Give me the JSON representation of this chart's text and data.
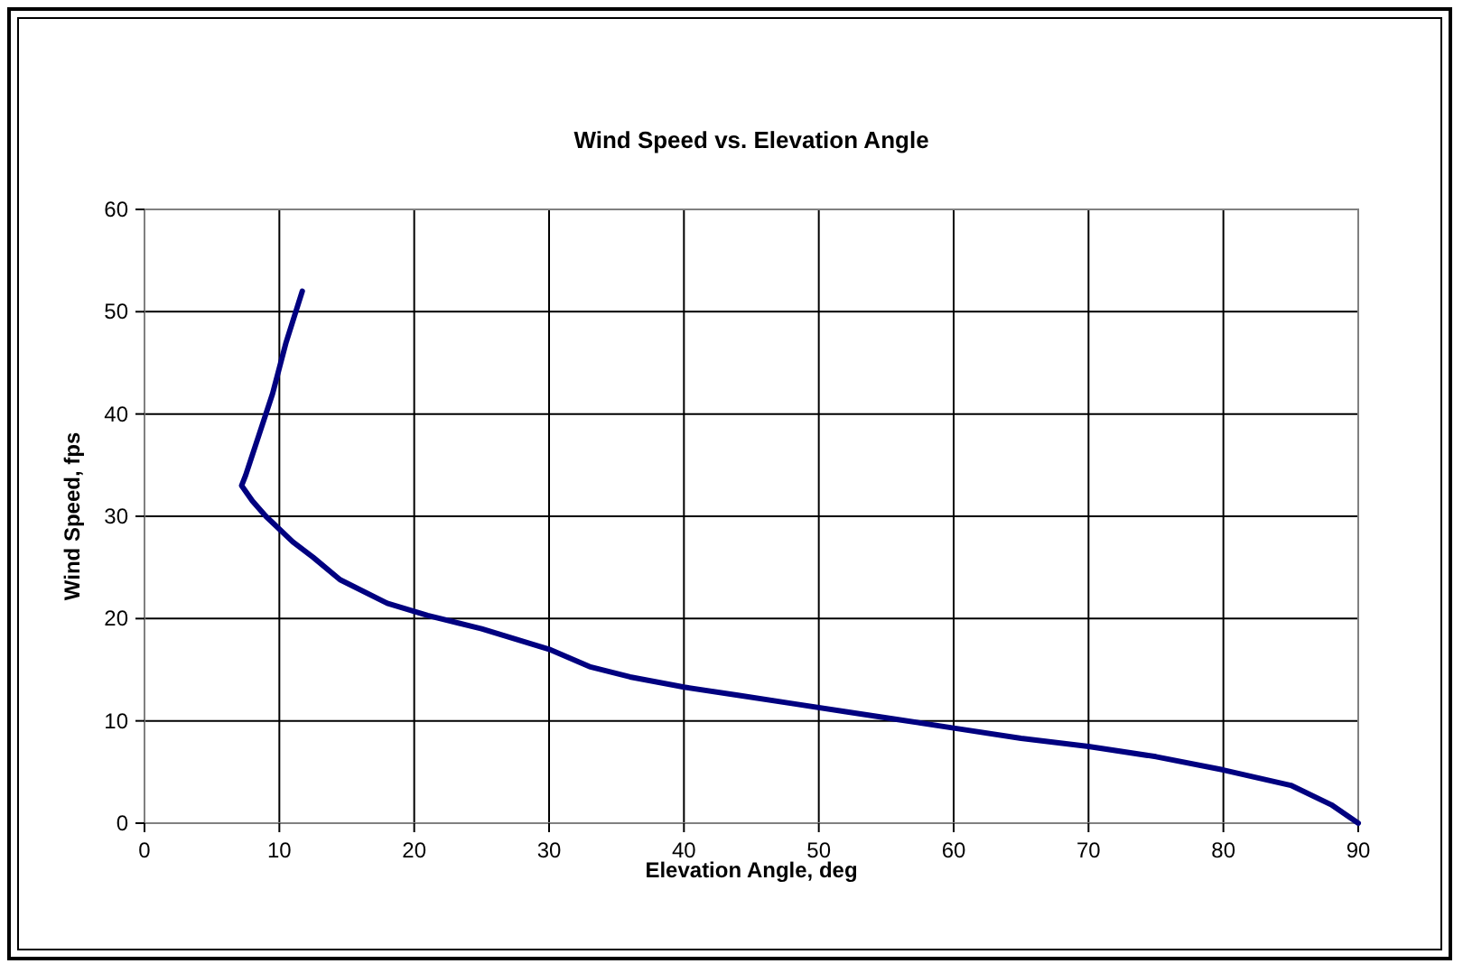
{
  "chart_data": {
    "type": "line",
    "title": "Wind Speed vs. Elevation Angle",
    "xlabel": "Elevation Angle, deg",
    "ylabel": "Wind Speed, fps",
    "series": [
      {
        "color": "#000080",
        "x": [
          11.7,
          10.5,
          9.5,
          8.5,
          7.5,
          7.2,
          8,
          9,
          11,
          12.5,
          14.5,
          18,
          21,
          25,
          30,
          33,
          36,
          40,
          44,
          48,
          52,
          56,
          60,
          65,
          70,
          75,
          80,
          85,
          88,
          90
        ],
        "values": [
          52,
          47,
          42,
          38,
          34,
          33,
          31.5,
          30,
          27.5,
          26,
          23.8,
          21.5,
          20.3,
          19,
          17,
          15.3,
          14.3,
          13.3,
          12.5,
          11.7,
          10.9,
          10.1,
          9.3,
          8.3,
          7.5,
          6.5,
          5.2,
          3.7,
          1.8,
          0
        ]
      }
    ],
    "xlim": [
      0,
      90
    ],
    "xticks": [
      0,
      10,
      20,
      30,
      40,
      50,
      60,
      70,
      80,
      90
    ],
    "ylim": [
      0,
      60
    ],
    "yticks": [
      0,
      10,
      20,
      30,
      40,
      50,
      60
    ],
    "grid": true,
    "marker": "none",
    "line_style": "solid"
  }
}
